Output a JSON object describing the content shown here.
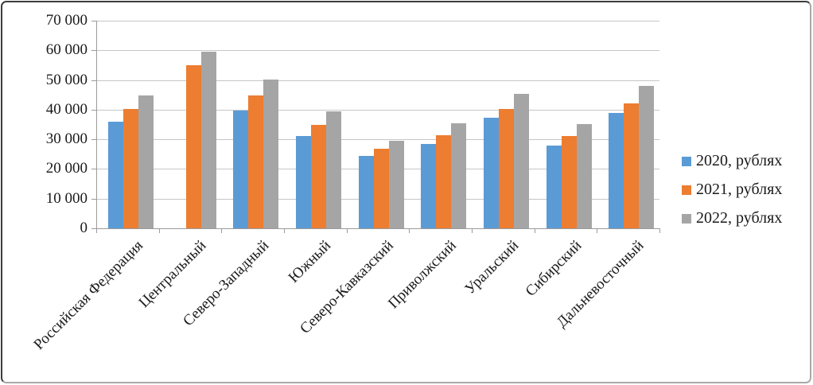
{
  "chart_data": {
    "type": "bar",
    "title": "",
    "xlabel": "",
    "ylabel": "",
    "categories": [
      "Российская Федерация",
      "Центральный",
      "Северо-Западный",
      "Южный",
      "Северо-Кавказский",
      "Приволжский",
      "Уральский",
      "Сибирский",
      "Дальневосточный"
    ],
    "series": [
      {
        "name": "2020, рублях",
        "color": "#5B9BD5",
        "values": [
          36000,
          null,
          39800,
          31000,
          24400,
          28400,
          37300,
          27800,
          38900
        ]
      },
      {
        "name": "2021, рублях",
        "color": "#ED7D31",
        "values": [
          40300,
          54900,
          44700,
          34900,
          26800,
          31300,
          40200,
          31000,
          42000
        ]
      },
      {
        "name": "2022, рублях",
        "color": "#A5A5A5",
        "values": [
          44900,
          59500,
          50200,
          39300,
          29500,
          35400,
          45300,
          35200,
          48100
        ]
      }
    ],
    "ylim": [
      0,
      70000
    ],
    "ytick_step": 10000,
    "y_tick_labels": [
      "0",
      "10 000",
      "20 000",
      "30 000",
      "40 000",
      "50 000",
      "60 000",
      "70 000"
    ],
    "grid": true,
    "legend_position": "right",
    "axis_color": "#9b9b9b",
    "gridline_color": "#c6c6c6"
  }
}
